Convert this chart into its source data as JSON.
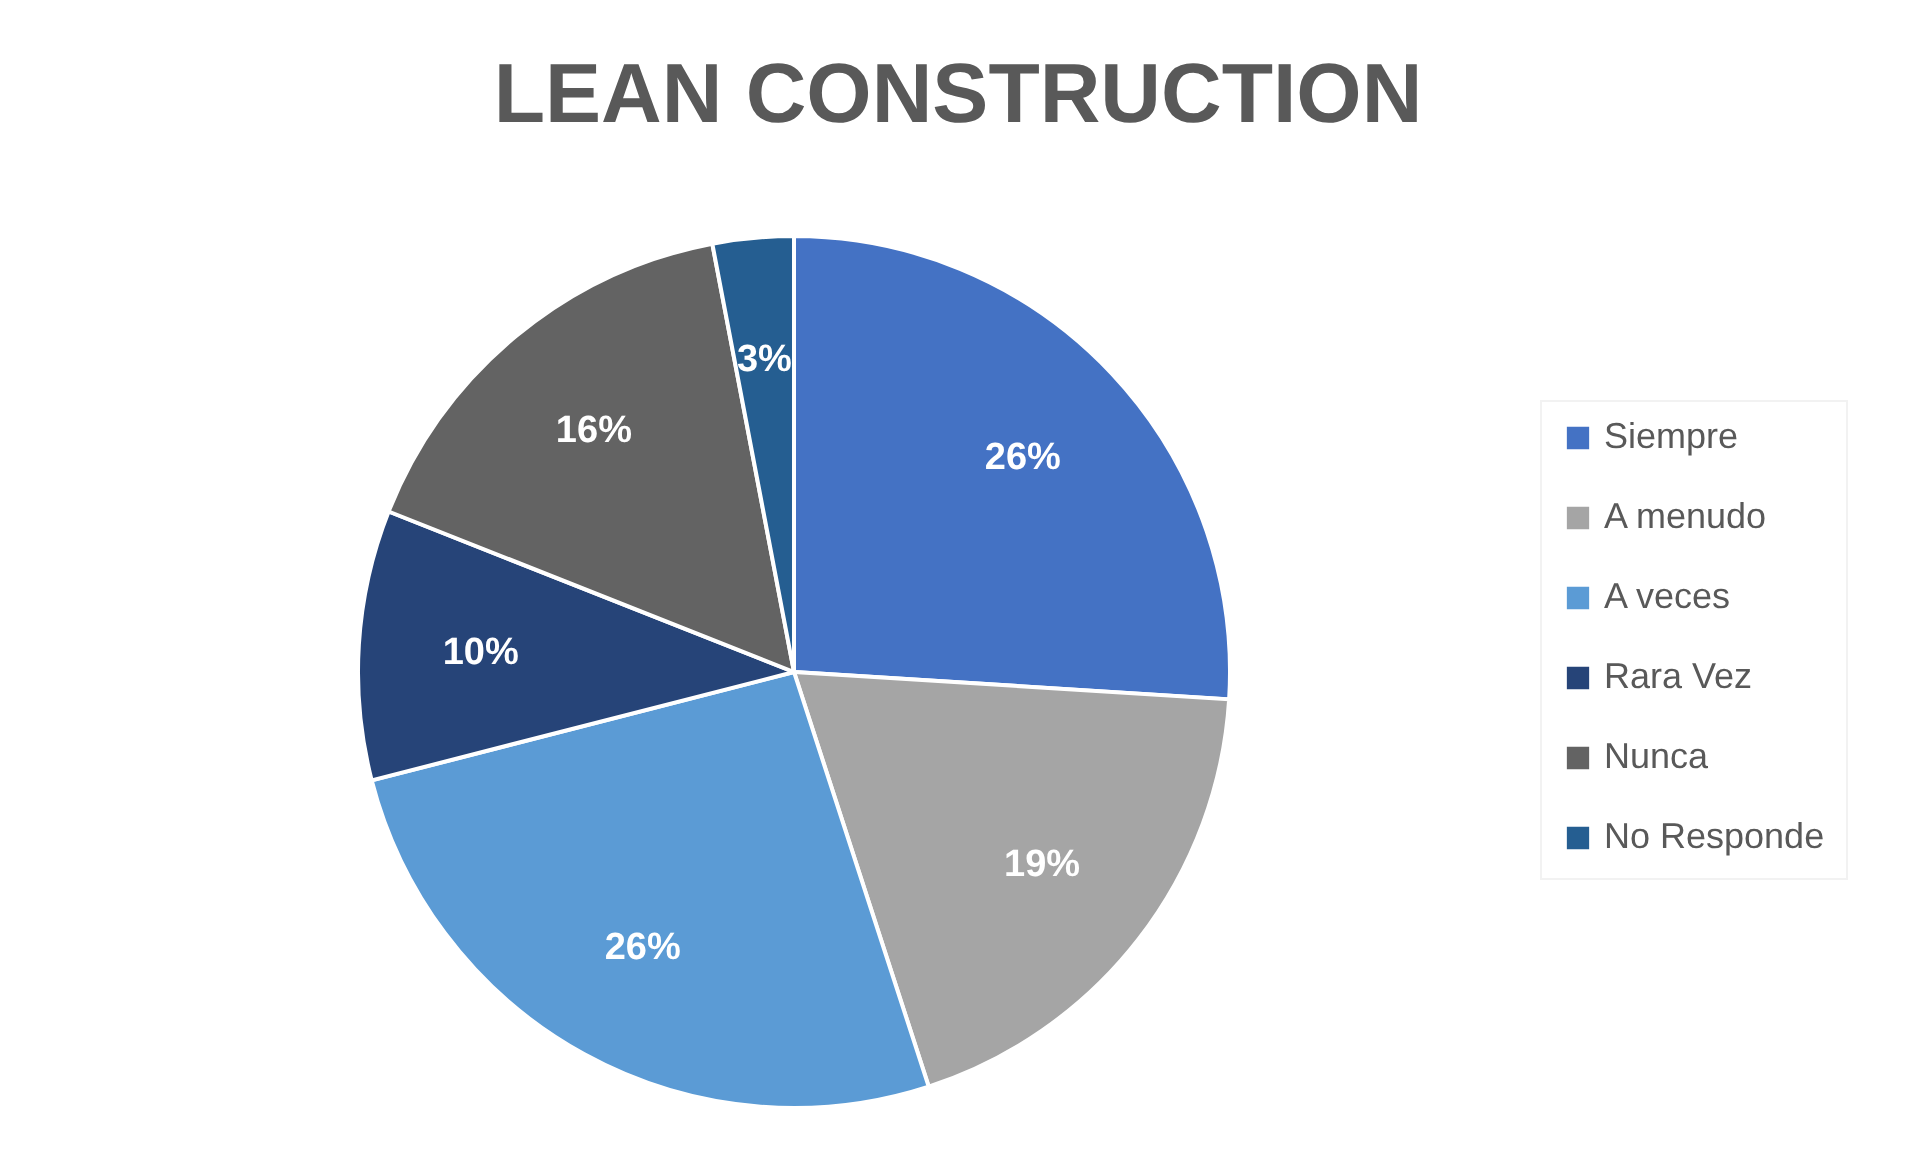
{
  "chart_data": {
    "type": "pie",
    "title": "LEAN CONSTRUCTION",
    "categories": [
      "Siempre",
      "A menudo",
      "A veces",
      "Rara Vez",
      "Nunca",
      "No Responde"
    ],
    "values": [
      26,
      19,
      26,
      10,
      16,
      3
    ],
    "value_labels": [
      "26%",
      "19%",
      "26%",
      "10%",
      "16%",
      "3%"
    ],
    "colors": [
      "#4472c4",
      "#a5a5a5",
      "#5b9bd5",
      "#264478",
      "#636363",
      "#255e91"
    ],
    "legend": "right"
  }
}
